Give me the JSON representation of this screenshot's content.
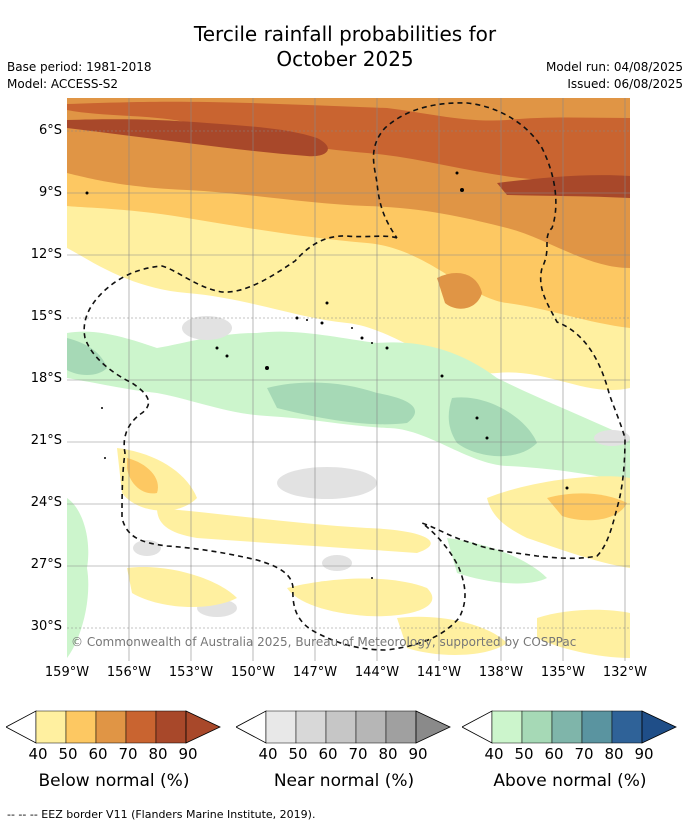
{
  "title_line1": "Tercile rainfall probabilities for",
  "title_line2": "October 2025",
  "base_period": "Base period: 1981-2018",
  "model": "Model: ACCESS-S2",
  "model_run": "Model run: 04/08/2025",
  "issued": "Issued: 06/08/2025",
  "lat_labels": [
    "6°S",
    "9°S",
    "12°S",
    "15°S",
    "18°S",
    "21°S",
    "24°S",
    "27°S",
    "30°S"
  ],
  "lon_labels": [
    "159°W",
    "156°W",
    "153°W",
    "150°W",
    "147°W",
    "144°W",
    "141°W",
    "138°W",
    "135°W",
    "132°W"
  ],
  "copyright": "© Commonwealth of Australia 2025, Bureau of Meteorology, supported by COSPPac",
  "colorbars": [
    {
      "title": "Below normal (%)",
      "ticks": [
        "40",
        "50",
        "60",
        "70",
        "80",
        "90"
      ],
      "colors": [
        "#fff0a0",
        "#fdc862",
        "#e09545",
        "#c96430",
        "#a8482a",
        "#a8482a"
      ]
    },
    {
      "title": "Near normal (%)",
      "ticks": [
        "40",
        "50",
        "60",
        "70",
        "80",
        "90"
      ],
      "colors": [
        "#e8e8e8",
        "#d8d8d8",
        "#c6c6c6",
        "#b6b6b6",
        "#a0a0a0",
        "#8a8a8a"
      ]
    },
    {
      "title": "Above normal (%)",
      "ticks": [
        "40",
        "50",
        "60",
        "70",
        "80",
        "90"
      ],
      "colors": [
        "#ccf5cc",
        "#a6d9b6",
        "#7fb5aa",
        "#5a94a0",
        "#2f6298",
        "#1f4e88"
      ]
    }
  ],
  "footer": "--  --  -- EEZ border V11 (Flanders Marine Institute, 2019).",
  "colors": {
    "dark_brown": "#a8482a",
    "brown": "#c96430",
    "orange": "#e09545",
    "light_orange": "#fdc862",
    "yellow": "#fff0a0",
    "green": "#ccf5cc",
    "teal": "#a6d9b6",
    "grey": "#e2e2e2"
  }
}
